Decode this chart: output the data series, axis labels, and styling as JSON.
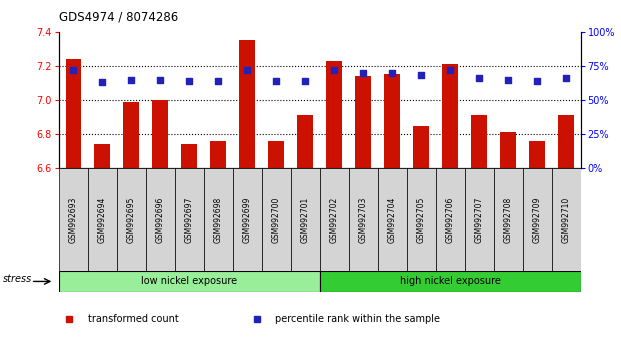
{
  "title": "GDS4974 / 8074286",
  "samples": [
    "GSM992693",
    "GSM992694",
    "GSM992695",
    "GSM992696",
    "GSM992697",
    "GSM992698",
    "GSM992699",
    "GSM992700",
    "GSM992701",
    "GSM992702",
    "GSM992703",
    "GSM992704",
    "GSM992705",
    "GSM992706",
    "GSM992707",
    "GSM992708",
    "GSM992709",
    "GSM992710"
  ],
  "transformed_count": [
    7.24,
    6.74,
    6.99,
    7.0,
    6.74,
    6.76,
    7.35,
    6.76,
    6.91,
    7.23,
    7.14,
    7.15,
    6.85,
    7.21,
    6.91,
    6.81,
    6.76,
    6.91
  ],
  "percentile_rank": [
    72,
    63,
    65,
    65,
    64,
    64,
    72,
    64,
    64,
    72,
    70,
    70,
    68,
    72,
    66,
    65,
    64,
    66
  ],
  "ylim_left": [
    6.6,
    7.4
  ],
  "ylim_right": [
    0,
    100
  ],
  "yticks_left": [
    6.6,
    6.8,
    7.0,
    7.2,
    7.4
  ],
  "yticks_right": [
    0,
    25,
    50,
    75,
    100
  ],
  "ytick_right_labels": [
    "0%",
    "25%",
    "50%",
    "75%",
    "100%"
  ],
  "groups": [
    {
      "label": "low nickel exposure",
      "start": 0,
      "end": 9,
      "color": "#99ee99"
    },
    {
      "label": "high nickel exposure",
      "start": 9,
      "end": 18,
      "color": "#33cc33"
    }
  ],
  "bar_color": "#cc1100",
  "dot_color": "#2222bb",
  "cell_bg": "#d4d4d4",
  "stress_label": "stress",
  "legend_items": [
    {
      "label": "transformed count",
      "color": "#cc1100"
    },
    {
      "label": "percentile rank within the sample",
      "color": "#2222bb"
    }
  ]
}
